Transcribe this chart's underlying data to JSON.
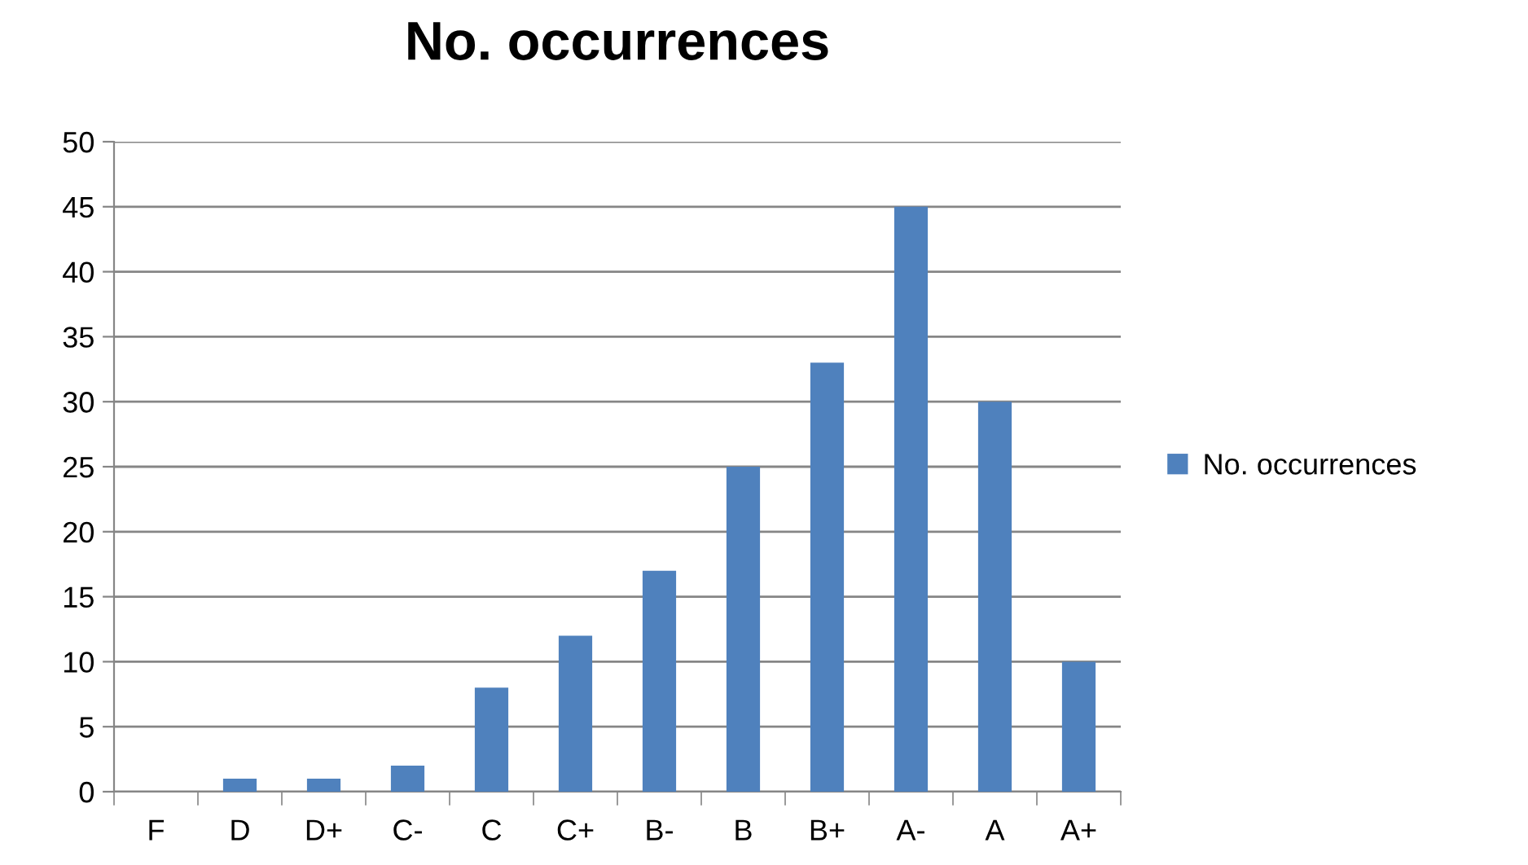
{
  "chart_data": {
    "type": "bar",
    "title": "No. occurrences",
    "categories": [
      "F",
      "D",
      "D+",
      "C-",
      "C",
      "C+",
      "B-",
      "B",
      "B+",
      "A-",
      "A",
      "A+"
    ],
    "series": [
      {
        "name": "No. occurrences",
        "color": "#4f81bd",
        "values": [
          0,
          1,
          1,
          2,
          8,
          12,
          17,
          25,
          33,
          45,
          30,
          10
        ]
      }
    ],
    "ylim": [
      0,
      50
    ],
    "yticks": [
      0,
      5,
      10,
      15,
      20,
      25,
      30,
      35,
      40,
      45,
      50
    ],
    "grid": "y",
    "legend": "right"
  }
}
